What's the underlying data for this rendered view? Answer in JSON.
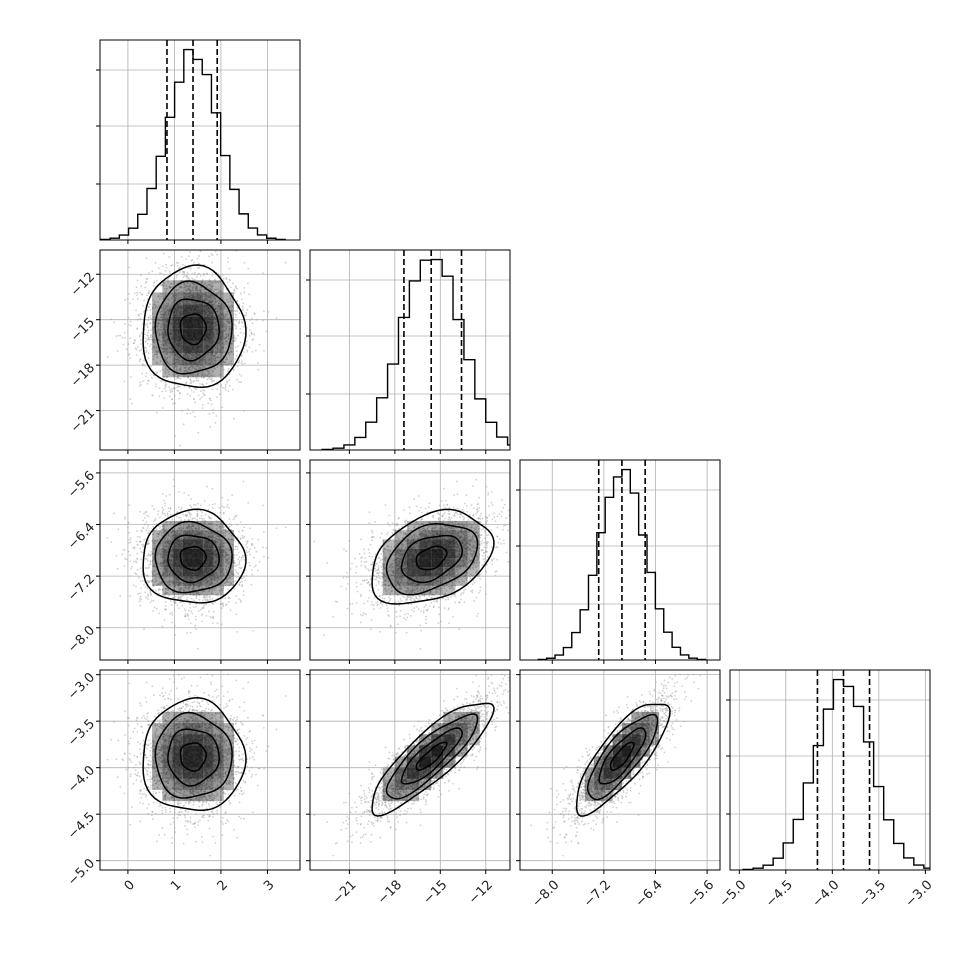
{
  "chart_data": {
    "type": "corner",
    "parameters": [
      {
        "range": [
          -0.6,
          3.7
        ],
        "ticks": [
          0,
          1,
          2,
          3
        ],
        "tick_labels": [
          "0",
          "1",
          "2",
          "3"
        ],
        "mean": 1.4,
        "std": 0.55,
        "quantiles": [
          0.84,
          1.4,
          1.92
        ]
      },
      {
        "range": [
          -23.6,
          -10.4
        ],
        "ticks": [
          -21,
          -18,
          -15,
          -12
        ],
        "tick_labels": [
          "−21",
          "−18",
          "−15",
          "−12"
        ],
        "mean": -15.6,
        "std": 2.0,
        "quantiles": [
          -17.4,
          -15.6,
          -13.6
        ]
      },
      {
        "range": [
          -8.5,
          -5.4
        ],
        "ticks": [
          -8.0,
          -7.2,
          -6.4,
          -5.6
        ],
        "tick_labels": [
          "−8.0",
          "−7.2",
          "−6.4",
          "−5.6"
        ],
        "mean": -6.92,
        "std": 0.36,
        "quantiles": [
          -7.28,
          -6.92,
          -6.56
        ]
      },
      {
        "range": [
          -5.1,
          -2.95
        ],
        "ticks": [
          -5.0,
          -4.5,
          -4.0,
          -3.5,
          -3.0
        ],
        "tick_labels": [
          "−5.0",
          "−4.5",
          "−4.0",
          "−3.5",
          "−3.0"
        ],
        "mean": -3.88,
        "std": 0.3,
        "quantiles": [
          -4.16,
          -3.88,
          -3.6
        ]
      }
    ],
    "correlations": [
      [
        1,
        0,
        0,
        0
      ],
      [
        0,
        1,
        0.35,
        0.85
      ],
      [
        0,
        0.35,
        1,
        0.8
      ],
      [
        0,
        0.85,
        0.8,
        1
      ]
    ],
    "histogram_bins": 20,
    "quantile_line_style": "dashed",
    "grid": true,
    "colors": {
      "line": "#000000",
      "points": "#9a9a9a",
      "grid": "#b0b0b0",
      "fill": "#000000"
    }
  }
}
